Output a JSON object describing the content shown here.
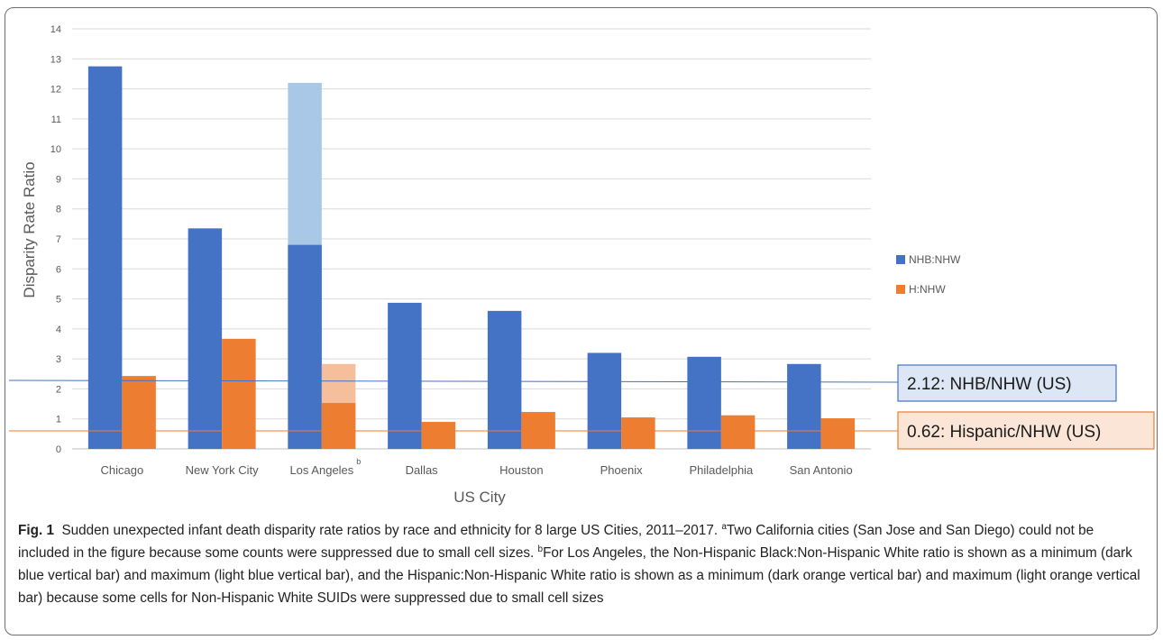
{
  "chart_data": {
    "type": "bar",
    "ylabel": "Disparity Rate Ratio",
    "xlabel": "US City",
    "ylim": [
      0,
      14
    ],
    "yticks": [
      0,
      1,
      2,
      3,
      4,
      5,
      6,
      7,
      8,
      9,
      10,
      11,
      12,
      13,
      14
    ],
    "grid": true,
    "legend_position": "right",
    "categories": [
      "Chicago",
      "New York City",
      "Los Angeles",
      "Dallas",
      "Houston",
      "Phoenix",
      "Philadelphia",
      "San Antonio"
    ],
    "category_superscripts": [
      "",
      "",
      "b",
      "",
      "",
      "",
      "",
      ""
    ],
    "series": [
      {
        "name": "NHB:NHW",
        "color": "#4472c4",
        "values": [
          12.75,
          7.35,
          6.8,
          4.87,
          4.6,
          3.2,
          3.07,
          2.83
        ],
        "max_values": [
          null,
          null,
          12.2,
          null,
          null,
          null,
          null,
          null
        ],
        "max_color": "#a9c8e8"
      },
      {
        "name": "H:NHW",
        "color": "#ed7d31",
        "values": [
          2.43,
          3.67,
          1.53,
          0.9,
          1.23,
          1.05,
          1.12,
          1.02
        ],
        "max_values": [
          null,
          null,
          2.83,
          null,
          null,
          null,
          null,
          null
        ],
        "max_color": "#f6bf9c"
      }
    ],
    "reference_lines": [
      {
        "label": "2.12: NHB/NHW (US)",
        "color": "#4472c4",
        "box_fill": "#dce6f4"
      },
      {
        "label": "0.62: Hispanic/NHW (US)",
        "color": "#ed7d31",
        "box_fill": "#fbe5d6"
      }
    ]
  },
  "caption": {
    "label": "Fig. 1",
    "text": "Sudden unexpected infant death disparity rate ratios by race and ethnicity for 8 large US Cities, 2011–2017.",
    "note_a_mark": "a",
    "note_a": "Two California cities (San Jose and San Diego) could not be included in the figure because some counts were suppressed due to small cell sizes.",
    "note_b_mark": "b",
    "note_b": "For Los Angeles, the Non-Hispanic Black:Non-Hispanic White ratio is shown as a minimum (dark blue vertical bar) and maximum (light blue vertical bar), and the Hispanic:Non-Hispanic White ratio is shown as a minimum (dark orange vertical bar) and maximum (light orange vertical bar) because some cells for Non-Hispanic White SUIDs were suppressed due to small cell sizes"
  }
}
